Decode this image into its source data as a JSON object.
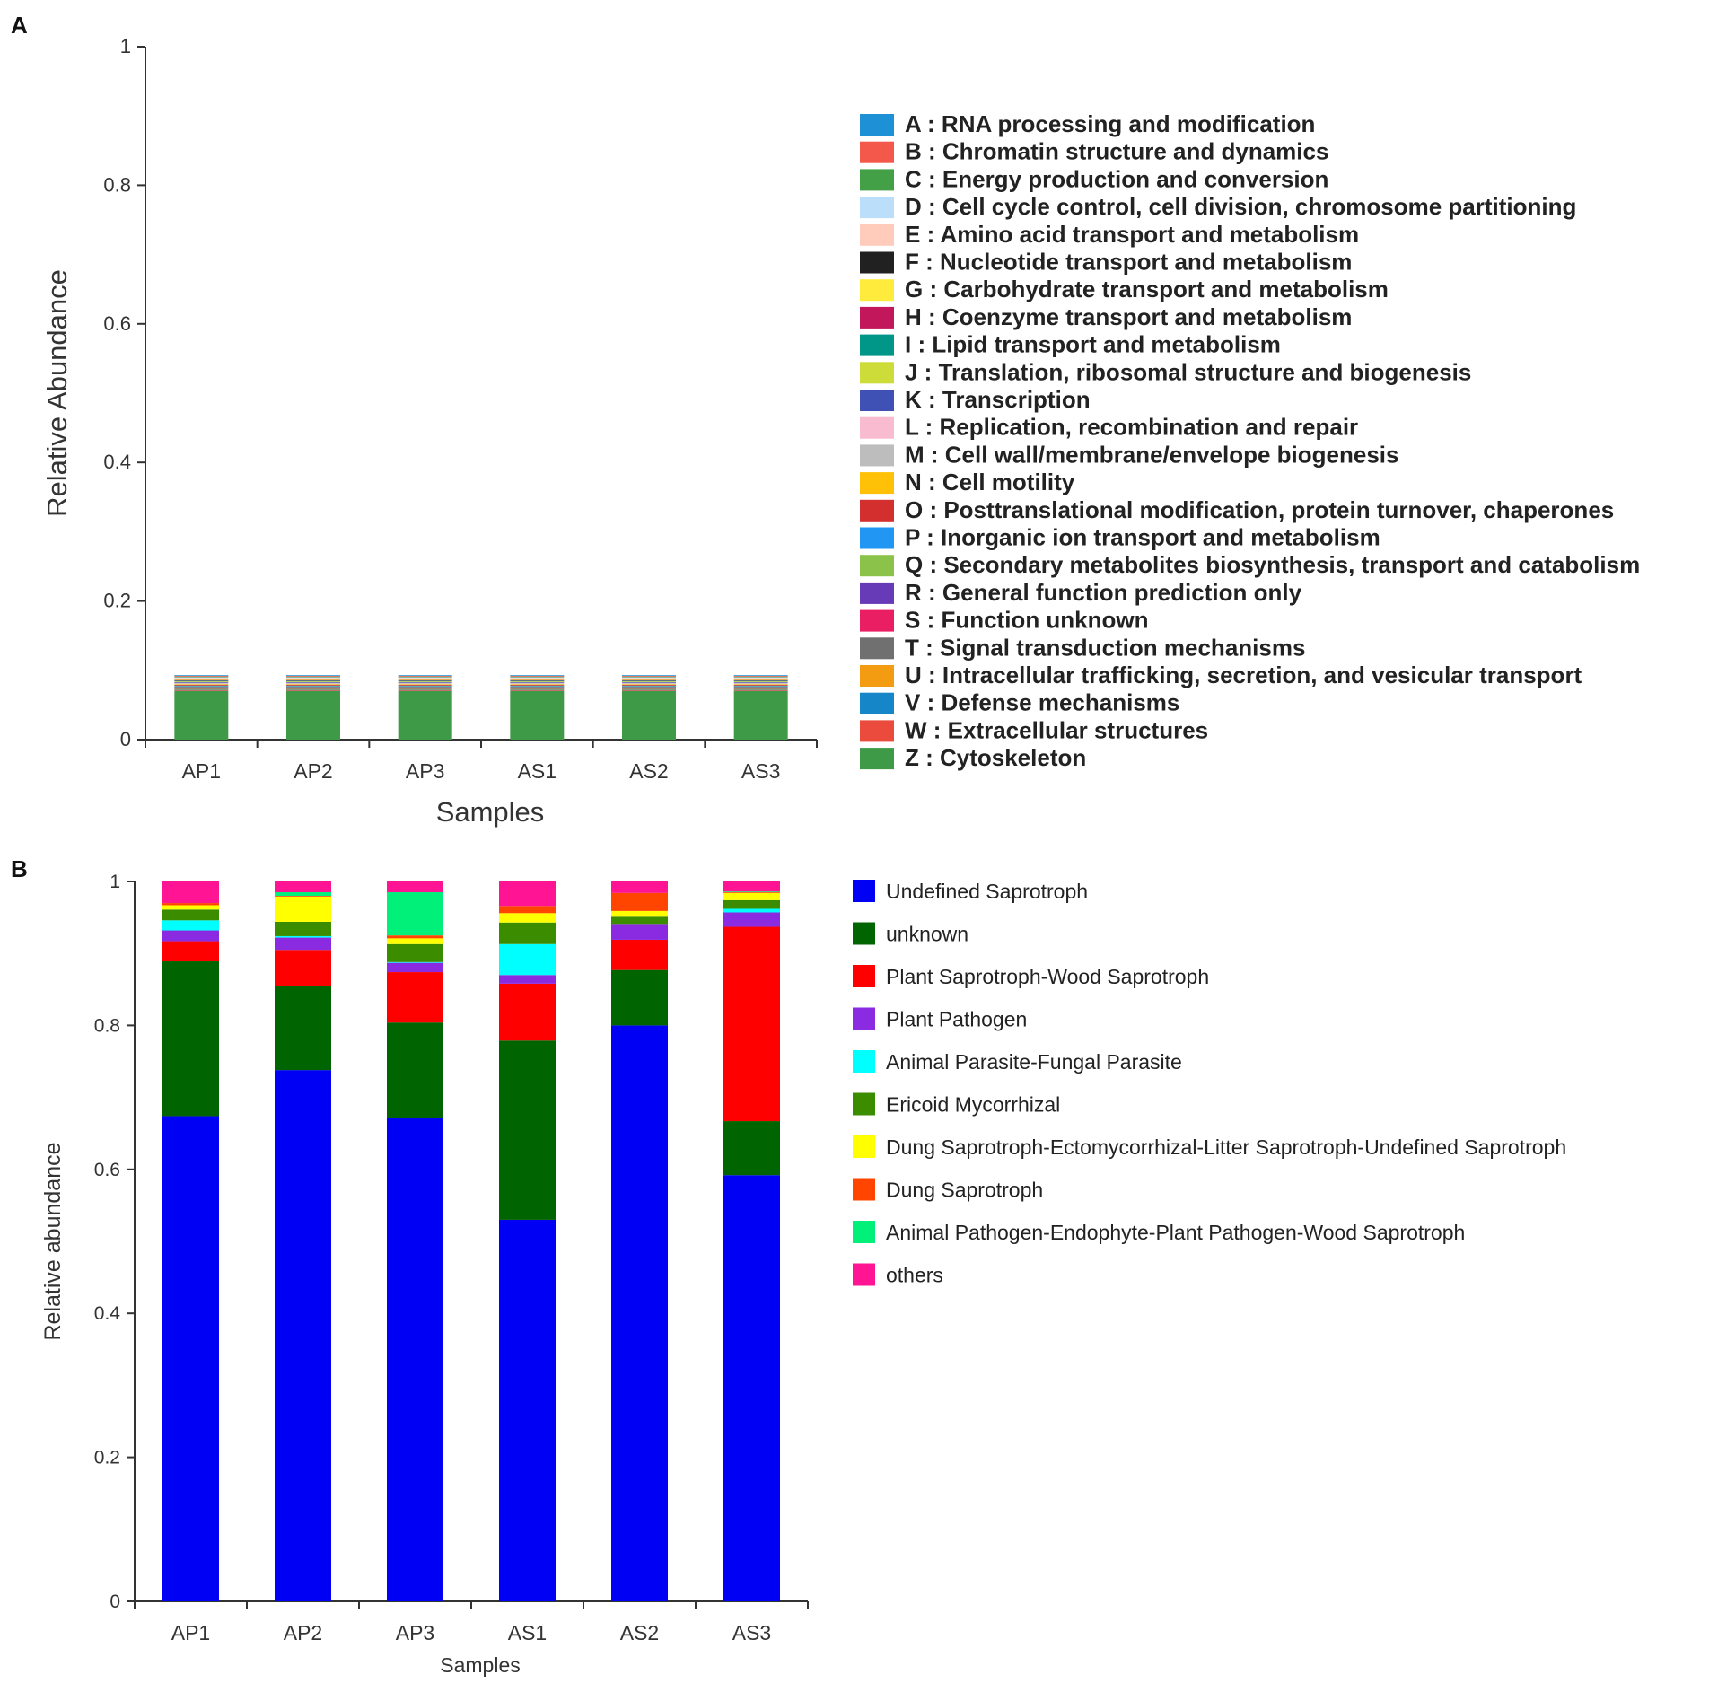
{
  "figure": {
    "panels": [
      "A",
      "B"
    ]
  },
  "chart_data": [
    {
      "panel": "A",
      "type": "bar",
      "stacked": true,
      "title": "",
      "xlabel": "Samples",
      "ylabel": "Relative Abundance",
      "ylim": [
        0,
        1
      ],
      "yticks": [
        "0",
        "0.2",
        "0.4",
        "0.6",
        "0.8",
        "1"
      ],
      "categories": [
        "AP1",
        "AP2",
        "AP3",
        "AS1",
        "AS2",
        "AS3"
      ],
      "series": [
        {
          "name": "Z : Cytoskeleton",
          "color": "#3e9a47",
          "values": [
            0.07,
            0.07,
            0.07,
            0.07,
            0.07,
            0.07
          ]
        },
        {
          "name": "W : Extracellular structures",
          "color": "#ea4b3c",
          "values": [
            0.001,
            0.001,
            0.001,
            0.001,
            0.001,
            0.001
          ]
        },
        {
          "name": "V : Defense mechanisms",
          "color": "#1586c8",
          "values": [
            0.001,
            0.001,
            0.001,
            0.001,
            0.001,
            0.001
          ]
        },
        {
          "name": "U : Intracellular trafficking, secretion, and vesicular transport",
          "color": "#f39c11",
          "values": [
            0.001,
            0.001,
            0.001,
            0.001,
            0.001,
            0.001
          ]
        },
        {
          "name": "T : Signal transduction mechanisms",
          "color": "#707070",
          "values": [
            0.001,
            0.001,
            0.001,
            0.001,
            0.001,
            0.001
          ]
        },
        {
          "name": "S : Function unknown",
          "color": "#e91e63",
          "values": [
            0.001,
            0.001,
            0.001,
            0.001,
            0.001,
            0.001
          ]
        },
        {
          "name": "R : General function prediction only",
          "color": "#673ab7",
          "values": [
            0.001,
            0.001,
            0.001,
            0.001,
            0.001,
            0.001
          ]
        },
        {
          "name": "Q : Secondary metabolites biosynthesis, transport and catabolism",
          "color": "#8bc34a",
          "values": [
            0.001,
            0.001,
            0.001,
            0.001,
            0.001,
            0.001
          ]
        },
        {
          "name": "P : Inorganic ion transport and metabolism",
          "color": "#2196f3",
          "values": [
            0.001,
            0.001,
            0.001,
            0.001,
            0.001,
            0.001
          ]
        },
        {
          "name": "O : Posttranslational modification, protein turnover, chaperones",
          "color": "#d32f2f",
          "values": [
            0.001,
            0.001,
            0.001,
            0.001,
            0.001,
            0.001
          ]
        },
        {
          "name": "N : Cell motility",
          "color": "#ffc107",
          "values": [
            0.001,
            0.001,
            0.001,
            0.001,
            0.001,
            0.001
          ]
        },
        {
          "name": "M : Cell wall/membrane/envelope biogenesis",
          "color": "#bdbdbd",
          "values": [
            0.001,
            0.001,
            0.001,
            0.001,
            0.001,
            0.001
          ]
        },
        {
          "name": "L : Replication, recombination and repair",
          "color": "#f8bbd0",
          "values": [
            0.001,
            0.001,
            0.001,
            0.001,
            0.001,
            0.001
          ]
        },
        {
          "name": "K : Transcription",
          "color": "#3f51b5",
          "values": [
            0.001,
            0.001,
            0.001,
            0.001,
            0.001,
            0.001
          ]
        },
        {
          "name": "J : Translation, ribosomal structure and biogenesis",
          "color": "#cddc39",
          "values": [
            0.001,
            0.001,
            0.001,
            0.001,
            0.001,
            0.001
          ]
        },
        {
          "name": "I : Lipid transport and metabolism",
          "color": "#009688",
          "values": [
            0.001,
            0.001,
            0.001,
            0.001,
            0.001,
            0.001
          ]
        },
        {
          "name": "H : Coenzyme transport and metabolism",
          "color": "#c2185b",
          "values": [
            0.001,
            0.001,
            0.001,
            0.001,
            0.001,
            0.001
          ]
        },
        {
          "name": "G : Carbohydrate transport and metabolism",
          "color": "#ffeb3b",
          "values": [
            0.001,
            0.001,
            0.001,
            0.001,
            0.001,
            0.001
          ]
        },
        {
          "name": "F : Nucleotide transport and metabolism",
          "color": "#212121",
          "values": [
            0.001,
            0.001,
            0.001,
            0.001,
            0.001,
            0.001
          ]
        },
        {
          "name": "E : Amino acid transport and metabolism",
          "color": "#ffccbc",
          "values": [
            0.001,
            0.001,
            0.001,
            0.001,
            0.001,
            0.001
          ]
        },
        {
          "name": "D : Cell cycle control, cell division, chromosome partitioning",
          "color": "#bbdefb",
          "values": [
            0.001,
            0.001,
            0.001,
            0.001,
            0.001,
            0.001
          ]
        },
        {
          "name": "C : Energy production and conversion",
          "color": "#43a047",
          "values": [
            0.001,
            0.001,
            0.001,
            0.001,
            0.001,
            0.001
          ]
        },
        {
          "name": "B : Chromatin structure and dynamics",
          "color": "#f4584a",
          "values": [
            0.001,
            0.001,
            0.001,
            0.001,
            0.001,
            0.001
          ]
        },
        {
          "name": "A : RNA processing and modification",
          "color": "#1e90d6",
          "values": [
            0.001,
            0.001,
            0.001,
            0.001,
            0.001,
            0.001
          ]
        }
      ],
      "legend": [
        {
          "label": "A : RNA processing and modification",
          "color": "#1e90d6"
        },
        {
          "label": "B : Chromatin structure and dynamics",
          "color": "#f4584a"
        },
        {
          "label": "C : Energy production and conversion",
          "color": "#43a047"
        },
        {
          "label": "D : Cell cycle control, cell division, chromosome partitioning",
          "color": "#bbdefb"
        },
        {
          "label": "E : Amino acid transport and metabolism",
          "color": "#ffccbc"
        },
        {
          "label": "F : Nucleotide transport and metabolism",
          "color": "#212121"
        },
        {
          "label": "G : Carbohydrate transport and metabolism",
          "color": "#ffeb3b"
        },
        {
          "label": "H : Coenzyme transport and metabolism",
          "color": "#c2185b"
        },
        {
          "label": "I : Lipid transport and metabolism",
          "color": "#009688"
        },
        {
          "label": "J : Translation, ribosomal structure and biogenesis",
          "color": "#cddc39"
        },
        {
          "label": "K : Transcription",
          "color": "#3f51b5"
        },
        {
          "label": "L : Replication, recombination and repair",
          "color": "#f8bbd0"
        },
        {
          "label": "M : Cell wall/membrane/envelope biogenesis",
          "color": "#bdbdbd"
        },
        {
          "label": "N : Cell motility",
          "color": "#ffc107"
        },
        {
          "label": "O : Posttranslational modification, protein turnover, chaperones",
          "color": "#d32f2f"
        },
        {
          "label": "P : Inorganic ion transport and metabolism",
          "color": "#2196f3"
        },
        {
          "label": "Q : Secondary metabolites biosynthesis, transport and catabolism",
          "color": "#8bc34a"
        },
        {
          "label": "R : General function prediction only",
          "color": "#673ab7"
        },
        {
          "label": "S : Function unknown",
          "color": "#e91e63"
        },
        {
          "label": "T : Signal transduction mechanisms",
          "color": "#707070"
        },
        {
          "label": "U : Intracellular trafficking, secretion, and vesicular transport",
          "color": "#f39c11"
        },
        {
          "label": "V : Defense mechanisms",
          "color": "#1586c8"
        },
        {
          "label": "W : Extracellular structures",
          "color": "#ea4b3c"
        },
        {
          "label": "Z : Cytoskeleton",
          "color": "#3e9a47"
        }
      ]
    },
    {
      "panel": "B",
      "type": "bar",
      "stacked": true,
      "title": "",
      "xlabel": "Samples",
      "ylabel": "Relative abundance",
      "ylim": [
        0,
        1
      ],
      "yticks": [
        "0",
        "0.2",
        "0.4",
        "0.6",
        "0.8",
        "1"
      ],
      "categories": [
        "AP1",
        "AP2",
        "AP3",
        "AS1",
        "AS2",
        "AS3"
      ],
      "series": [
        {
          "name": "Undefined Saprotroph",
          "color": "#0000f5",
          "values": [
            0.674,
            0.738,
            0.671,
            0.53,
            0.8,
            0.592
          ]
        },
        {
          "name": "unknown",
          "color": "#006400",
          "values": [
            0.215,
            0.117,
            0.133,
            0.249,
            0.077,
            0.075
          ]
        },
        {
          "name": "Plant Saprotroph-Wood Saprotroph",
          "color": "#ff0000",
          "values": [
            0.028,
            0.05,
            0.07,
            0.079,
            0.042,
            0.27
          ]
        },
        {
          "name": "Plant Pathogen",
          "color": "#8a2be2",
          "values": [
            0.015,
            0.017,
            0.013,
            0.012,
            0.022,
            0.02
          ]
        },
        {
          "name": "Animal Parasite-Fungal Parasite",
          "color": "#00ffff",
          "values": [
            0.014,
            0.002,
            0.001,
            0.043,
            0.0,
            0.005
          ]
        },
        {
          "name": "Ericoid Mycorrhizal",
          "color": "#3c8c00",
          "values": [
            0.015,
            0.02,
            0.025,
            0.03,
            0.01,
            0.012
          ]
        },
        {
          "name": "Dung Saprotroph-Ectomycorrhizal-Litter Saprotroph-Undefined Saprotroph",
          "color": "#ffff00",
          "values": [
            0.006,
            0.035,
            0.008,
            0.013,
            0.008,
            0.01
          ]
        },
        {
          "name": "Dung Saprotroph",
          "color": "#ff4500",
          "values": [
            0.003,
            0.001,
            0.004,
            0.01,
            0.025,
            0.001
          ]
        },
        {
          "name": "Animal Pathogen-Endophyte-Plant Pathogen-Wood Saprotroph",
          "color": "#00f07a",
          "values": [
            0.0,
            0.005,
            0.06,
            0.0,
            0.0,
            0.001
          ]
        },
        {
          "name": "others",
          "color": "#ff1493",
          "values": [
            0.03,
            0.015,
            0.015,
            0.034,
            0.016,
            0.014
          ]
        }
      ],
      "legend": [
        {
          "label": "Undefined Saprotroph",
          "color": "#0000f5"
        },
        {
          "label": "unknown",
          "color": "#006400"
        },
        {
          "label": "Plant Saprotroph-Wood Saprotroph",
          "color": "#ff0000"
        },
        {
          "label": "Plant Pathogen",
          "color": "#8a2be2"
        },
        {
          "label": "Animal Parasite-Fungal Parasite",
          "color": "#00ffff"
        },
        {
          "label": "Ericoid Mycorrhizal",
          "color": "#3c8c00"
        },
        {
          "label": "Dung Saprotroph-Ectomycorrhizal-Litter Saprotroph-Undefined Saprotroph",
          "color": "#ffff00"
        },
        {
          "label": "Dung Saprotroph",
          "color": "#ff4500"
        },
        {
          "label": "Animal Pathogen-Endophyte-Plant Pathogen-Wood Saprotroph",
          "color": "#00f07a"
        },
        {
          "label": "others",
          "color": "#ff1493"
        }
      ]
    }
  ]
}
